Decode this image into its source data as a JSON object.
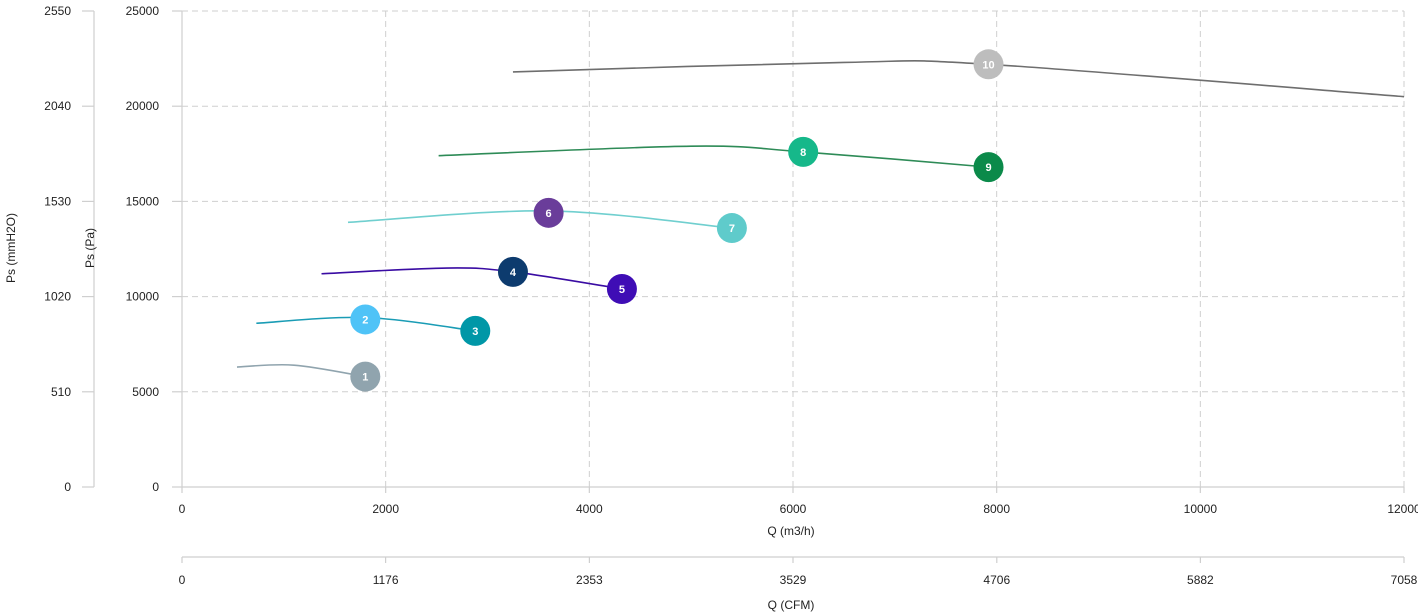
{
  "chart_data": {
    "type": "line",
    "title": "",
    "x_axes": [
      {
        "label": "Q (m3/h)",
        "range": [
          0,
          12000
        ],
        "ticks": [
          0,
          2000,
          4000,
          6000,
          8000,
          10000,
          12000
        ]
      },
      {
        "label": "Q (CFM)",
        "range": [
          0,
          7058
        ],
        "ticks": [
          0,
          1176,
          2353,
          3529,
          4706,
          5882,
          7058
        ]
      }
    ],
    "y_axes": [
      {
        "label": "Ps (Pa)",
        "range": [
          0,
          25000
        ],
        "ticks": [
          0,
          5000,
          10000,
          15000,
          20000,
          25000
        ]
      },
      {
        "label": "Ps (mmH2O)",
        "range": [
          0,
          2550
        ],
        "ticks": [
          0,
          510,
          1020,
          1530,
          2040,
          2550
        ]
      }
    ],
    "grid": true,
    "series": [
      {
        "color": "#90a4ae",
        "points": [
          [
            540,
            6300
          ],
          [
            1100,
            6400
          ],
          [
            1800,
            5800
          ]
        ]
      },
      {
        "color": "#1a9cb5",
        "points": [
          [
            730,
            8600
          ],
          [
            1800,
            8900
          ],
          [
            2880,
            8200
          ]
        ]
      },
      {
        "color": "#3a0ca3",
        "points": [
          [
            1370,
            11200
          ],
          [
            2600,
            11500
          ],
          [
            3250,
            11300
          ],
          [
            4320,
            10400
          ]
        ]
      },
      {
        "color": "#70cfcf",
        "points": [
          [
            1630,
            13900
          ],
          [
            3600,
            14500
          ],
          [
            5400,
            13600
          ]
        ]
      },
      {
        "color": "#2e8b57",
        "points": [
          [
            2520,
            17400
          ],
          [
            5000,
            17900
          ],
          [
            6100,
            17600
          ],
          [
            7920,
            16800
          ]
        ]
      },
      {
        "color": "#6e6e6e",
        "points": [
          [
            3250,
            21800
          ],
          [
            6500,
            22300
          ],
          [
            7920,
            22200
          ],
          [
            12000,
            20500
          ]
        ]
      }
    ],
    "markers": [
      {
        "label": "1",
        "x": 1800,
        "y": 5800,
        "color": "#90a4ae"
      },
      {
        "label": "2",
        "x": 1800,
        "y": 8800,
        "color": "#4fc3f7"
      },
      {
        "label": "3",
        "x": 2880,
        "y": 8200,
        "color": "#0097a7"
      },
      {
        "label": "4",
        "x": 3250,
        "y": 11300,
        "color": "#0d3b6e"
      },
      {
        "label": "5",
        "x": 4320,
        "y": 10400,
        "color": "#3f0db5"
      },
      {
        "label": "6",
        "x": 3600,
        "y": 14400,
        "color": "#6a3d9a"
      },
      {
        "label": "7",
        "x": 5400,
        "y": 13600,
        "color": "#5fcbcb"
      },
      {
        "label": "8",
        "x": 6100,
        "y": 17600,
        "color": "#16b88a"
      },
      {
        "label": "9",
        "x": 7920,
        "y": 16800,
        "color": "#0b8a4a"
      },
      {
        "label": "10",
        "x": 7920,
        "y": 22200,
        "color": "#bdbdbd"
      }
    ]
  }
}
